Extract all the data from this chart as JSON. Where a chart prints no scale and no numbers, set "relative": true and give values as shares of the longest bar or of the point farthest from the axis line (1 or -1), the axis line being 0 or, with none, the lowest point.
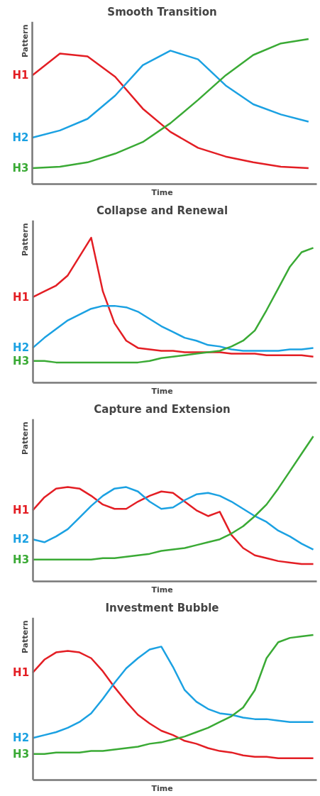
{
  "chart_data": [
    {
      "type": "line",
      "title": "Smooth Transition",
      "xlabel": "Time",
      "ylabel": "Pattern",
      "relative": true,
      "grid": false,
      "categories": [
        null,
        null,
        null,
        null,
        null,
        null,
        null,
        null,
        null,
        null,
        null
      ],
      "series": [
        {
          "name": "H1",
          "color": "#e31e24",
          "values": [
            0.75,
            0.9,
            0.88,
            0.74,
            0.52,
            0.36,
            0.25,
            0.19,
            0.15,
            0.12,
            0.11
          ]
        },
        {
          "name": "H2",
          "color": "#1ba1e2",
          "values": [
            0.32,
            0.37,
            0.45,
            0.61,
            0.82,
            0.92,
            0.86,
            0.68,
            0.55,
            0.48,
            0.43
          ]
        },
        {
          "name": "H3",
          "color": "#3aaa35",
          "values": [
            0.11,
            0.12,
            0.15,
            0.21,
            0.29,
            0.42,
            0.58,
            0.75,
            0.89,
            0.97,
            1.0
          ]
        }
      ]
    },
    {
      "type": "line",
      "title": "Collapse and Renewal",
      "xlabel": "Time",
      "ylabel": "Pattern",
      "relative": true,
      "grid": false,
      "categories": [
        null,
        null,
        null,
        null,
        null,
        null,
        null,
        null,
        null,
        null,
        null,
        null,
        null,
        null,
        null,
        null,
        null,
        null,
        null,
        null,
        null,
        null,
        null,
        null,
        null
      ],
      "series": [
        {
          "name": "H1",
          "color": "#e31e24",
          "values": [
            0.59,
            0.63,
            0.67,
            0.74,
            0.87,
            1.0,
            0.63,
            0.41,
            0.29,
            0.24,
            0.23,
            0.22,
            0.22,
            0.21,
            0.21,
            0.21,
            0.21,
            0.2,
            0.2,
            0.2,
            0.19,
            0.19,
            0.19,
            0.19,
            0.18
          ]
        },
        {
          "name": "H2",
          "color": "#1ba1e2",
          "values": [
            0.24,
            0.31,
            0.37,
            0.43,
            0.47,
            0.51,
            0.53,
            0.53,
            0.52,
            0.49,
            0.44,
            0.39,
            0.35,
            0.31,
            0.29,
            0.26,
            0.25,
            0.23,
            0.22,
            0.22,
            0.22,
            0.22,
            0.23,
            0.23,
            0.24
          ]
        },
        {
          "name": "H3",
          "color": "#3aaa35",
          "values": [
            0.15,
            0.15,
            0.14,
            0.14,
            0.14,
            0.14,
            0.14,
            0.14,
            0.14,
            0.14,
            0.15,
            0.17,
            0.18,
            0.19,
            0.2,
            0.21,
            0.22,
            0.25,
            0.29,
            0.36,
            0.5,
            0.65,
            0.8,
            0.9,
            0.93
          ]
        }
      ]
    },
    {
      "type": "line",
      "title": "Capture and Extension",
      "xlabel": "Time",
      "ylabel": "Pattern",
      "relative": true,
      "grid": false,
      "categories": [
        null,
        null,
        null,
        null,
        null,
        null,
        null,
        null,
        null,
        null,
        null,
        null,
        null,
        null,
        null,
        null,
        null,
        null,
        null,
        null,
        null,
        null,
        null,
        null,
        null
      ],
      "series": [
        {
          "name": "H1",
          "color": "#e31e24",
          "values": [
            0.49,
            0.58,
            0.64,
            0.65,
            0.64,
            0.59,
            0.53,
            0.5,
            0.5,
            0.55,
            0.59,
            0.62,
            0.61,
            0.55,
            0.49,
            0.45,
            0.48,
            0.32,
            0.23,
            0.18,
            0.16,
            0.14,
            0.13,
            0.12,
            0.12
          ]
        },
        {
          "name": "H2",
          "color": "#1ba1e2",
          "values": [
            0.29,
            0.27,
            0.31,
            0.36,
            0.44,
            0.52,
            0.59,
            0.64,
            0.65,
            0.62,
            0.55,
            0.5,
            0.51,
            0.56,
            0.6,
            0.61,
            0.59,
            0.55,
            0.5,
            0.45,
            0.41,
            0.35,
            0.31,
            0.26,
            0.22
          ]
        },
        {
          "name": "H3",
          "color": "#3aaa35",
          "values": [
            0.15,
            0.15,
            0.15,
            0.15,
            0.15,
            0.15,
            0.16,
            0.16,
            0.17,
            0.18,
            0.19,
            0.21,
            0.22,
            0.23,
            0.25,
            0.27,
            0.29,
            0.33,
            0.38,
            0.45,
            0.53,
            0.64,
            0.76,
            0.88,
            1.0
          ]
        }
      ]
    },
    {
      "type": "line",
      "title": "Investment Bubble",
      "xlabel": "Time",
      "ylabel": "Pattern",
      "relative": true,
      "grid": false,
      "categories": [
        null,
        null,
        null,
        null,
        null,
        null,
        null,
        null,
        null,
        null,
        null,
        null,
        null,
        null,
        null,
        null,
        null,
        null,
        null,
        null,
        null,
        null,
        null,
        null,
        null
      ],
      "series": [
        {
          "name": "H1",
          "color": "#e31e24",
          "values": [
            0.74,
            0.83,
            0.88,
            0.89,
            0.88,
            0.84,
            0.75,
            0.64,
            0.54,
            0.45,
            0.39,
            0.34,
            0.31,
            0.27,
            0.25,
            0.22,
            0.2,
            0.19,
            0.17,
            0.16,
            0.16,
            0.15,
            0.15,
            0.15,
            0.15
          ]
        },
        {
          "name": "H2",
          "color": "#1ba1e2",
          "values": [
            0.29,
            0.31,
            0.33,
            0.36,
            0.4,
            0.46,
            0.56,
            0.67,
            0.77,
            0.84,
            0.9,
            0.92,
            0.78,
            0.62,
            0.54,
            0.49,
            0.46,
            0.45,
            0.43,
            0.42,
            0.42,
            0.41,
            0.4,
            0.4,
            0.4
          ]
        },
        {
          "name": "H3",
          "color": "#3aaa35",
          "values": [
            0.18,
            0.18,
            0.19,
            0.19,
            0.19,
            0.2,
            0.2,
            0.21,
            0.22,
            0.23,
            0.25,
            0.26,
            0.28,
            0.3,
            0.33,
            0.36,
            0.4,
            0.44,
            0.5,
            0.62,
            0.84,
            0.95,
            0.98,
            0.99,
            1.0
          ]
        }
      ]
    }
  ]
}
